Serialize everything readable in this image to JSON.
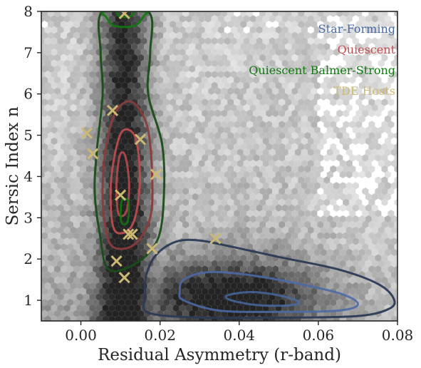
{
  "chart_data": {
    "type": "scatter",
    "xlabel": "Residual Asymmetry (r-band)",
    "ylabel": "Sersic Index n",
    "xlim": [
      -0.01,
      0.08
    ],
    "ylim": [
      0.5,
      8.0
    ],
    "x_ticks": [
      0.0,
      0.02,
      0.04,
      0.06,
      0.08
    ],
    "x_tick_labels": [
      "0.00",
      "0.02",
      "0.04",
      "0.06",
      "0.08"
    ],
    "y_ticks": [
      1,
      2,
      3,
      4,
      5,
      6,
      7,
      8
    ],
    "y_tick_labels": [
      "1",
      "2",
      "3",
      "4",
      "5",
      "6",
      "7",
      "8"
    ],
    "grid": false,
    "legend_placement": "top-right",
    "legend": [
      {
        "label": "Star-Forming",
        "color": "#4a6aa5"
      },
      {
        "label": "Quiescent",
        "color": "#c44e52"
      },
      {
        "label": "Quiescent Balmer-Strong",
        "color": "#0f7a0f"
      },
      {
        "label": "TDE Hosts",
        "color": "#ccb974"
      }
    ],
    "background_density": {
      "type": "hexbin",
      "colormap": "greys",
      "ridge": {
        "x": 0.011,
        "y_range": [
          0.5,
          8.0
        ]
      },
      "blob": {
        "x": 0.038,
        "y": 1.1
      }
    },
    "contours": [
      {
        "name": "Star-Forming",
        "color": "#2b3a55",
        "levels": [
          [
            [
              0.017,
              0.7
            ],
            [
              0.03,
              0.58
            ],
            [
              0.05,
              0.58
            ],
            [
              0.07,
              0.62
            ],
            [
              0.078,
              0.8
            ],
            [
              0.079,
              1.05
            ],
            [
              0.075,
              1.4
            ],
            [
              0.065,
              1.75
            ],
            [
              0.05,
              2.05
            ],
            [
              0.038,
              2.3
            ],
            [
              0.03,
              2.45
            ],
            [
              0.024,
              2.42
            ],
            [
              0.019,
              2.1
            ],
            [
              0.0165,
              1.6
            ],
            [
              0.0163,
              1.1
            ]
          ],
          [
            [
              0.026,
              1.0
            ],
            [
              0.035,
              0.75
            ],
            [
              0.05,
              0.72
            ],
            [
              0.065,
              0.75
            ],
            [
              0.07,
              0.9
            ],
            [
              0.066,
              1.15
            ],
            [
              0.055,
              1.4
            ],
            [
              0.042,
              1.62
            ],
            [
              0.032,
              1.68
            ],
            [
              0.026,
              1.5
            ],
            [
              0.025,
              1.2
            ]
          ],
          [
            [
              0.038,
              1.0
            ],
            [
              0.045,
              0.88
            ],
            [
              0.053,
              0.88
            ],
            [
              0.055,
              0.97
            ],
            [
              0.05,
              1.12
            ],
            [
              0.043,
              1.2
            ],
            [
              0.037,
              1.12
            ]
          ]
        ]
      },
      {
        "name": "Quiescent",
        "color": "#8a3c3c",
        "levels": [
          [
            [
              0.008,
              2.3
            ],
            [
              0.0135,
              2.35
            ],
            [
              0.0175,
              3.0
            ],
            [
              0.018,
              4.0
            ],
            [
              0.0168,
              5.2
            ],
            [
              0.013,
              5.8
            ],
            [
              0.009,
              5.6
            ],
            [
              0.0065,
              4.8
            ],
            [
              0.0055,
              3.8
            ],
            [
              0.006,
              2.9
            ]
          ],
          [
            [
              0.0085,
              2.7
            ],
            [
              0.0125,
              2.75
            ],
            [
              0.0145,
              3.4
            ],
            [
              0.0148,
              4.3
            ],
            [
              0.0135,
              5.0
            ],
            [
              0.0105,
              5.1
            ],
            [
              0.0085,
              4.5
            ],
            [
              0.0075,
              3.6
            ]
          ],
          [
            [
              0.0095,
              3.1
            ],
            [
              0.0115,
              3.15
            ],
            [
              0.0122,
              3.8
            ],
            [
              0.0112,
              4.5
            ],
            [
              0.0098,
              4.5
            ],
            [
              0.009,
              3.8
            ]
          ]
        ]
      },
      {
        "name": "Quiescent Balmer-Strong",
        "color": "#1a4d1a",
        "levels": [
          [
            [
              0.007,
              1.75
            ],
            [
              0.014,
              1.9
            ],
            [
              0.0195,
              2.5
            ],
            [
              0.021,
              3.6
            ],
            [
              0.0205,
              4.8
            ],
            [
              0.017,
              6.0
            ],
            [
              0.0175,
              7.0
            ],
            [
              0.017,
              8.0
            ],
            [
              0.0055,
              8.0
            ],
            [
              0.005,
              7.0
            ],
            [
              0.0055,
              6.0
            ],
            [
              0.004,
              4.6
            ],
            [
              0.0035,
              3.6
            ],
            [
              0.0048,
              2.6
            ]
          ],
          [
            [
              0.0085,
              7.65
            ],
            [
              0.0135,
              7.65
            ],
            [
              0.016,
              7.9
            ],
            [
              0.016,
              8.0
            ],
            [
              0.006,
              8.0
            ],
            [
              0.0065,
              7.85
            ]
          ],
          [
            [
              0.0098,
              7.88
            ],
            [
              0.0125,
              7.88
            ],
            [
              0.013,
              8.0
            ],
            [
              0.0093,
              8.0
            ]
          ],
          [
            [
              0.0102,
              2.9
            ],
            [
              0.0118,
              2.9
            ],
            [
              0.012,
              3.4
            ],
            [
              0.0103,
              3.4
            ]
          ]
        ]
      }
    ],
    "series": [
      {
        "name": "TDE Hosts",
        "marker": "x",
        "color": "#ccb974",
        "points": [
          {
            "x": 0.011,
            "y": 7.95
          },
          {
            "x": 0.008,
            "y": 5.6
          },
          {
            "x": 0.0015,
            "y": 5.05
          },
          {
            "x": 0.015,
            "y": 4.9
          },
          {
            "x": 0.003,
            "y": 4.55
          },
          {
            "x": 0.019,
            "y": 4.05
          },
          {
            "x": 0.01,
            "y": 3.55
          },
          {
            "x": 0.012,
            "y": 2.6
          },
          {
            "x": 0.013,
            "y": 2.6
          },
          {
            "x": 0.034,
            "y": 2.5
          },
          {
            "x": 0.018,
            "y": 2.25
          },
          {
            "x": 0.009,
            "y": 1.95
          },
          {
            "x": 0.011,
            "y": 1.55
          }
        ]
      }
    ]
  }
}
